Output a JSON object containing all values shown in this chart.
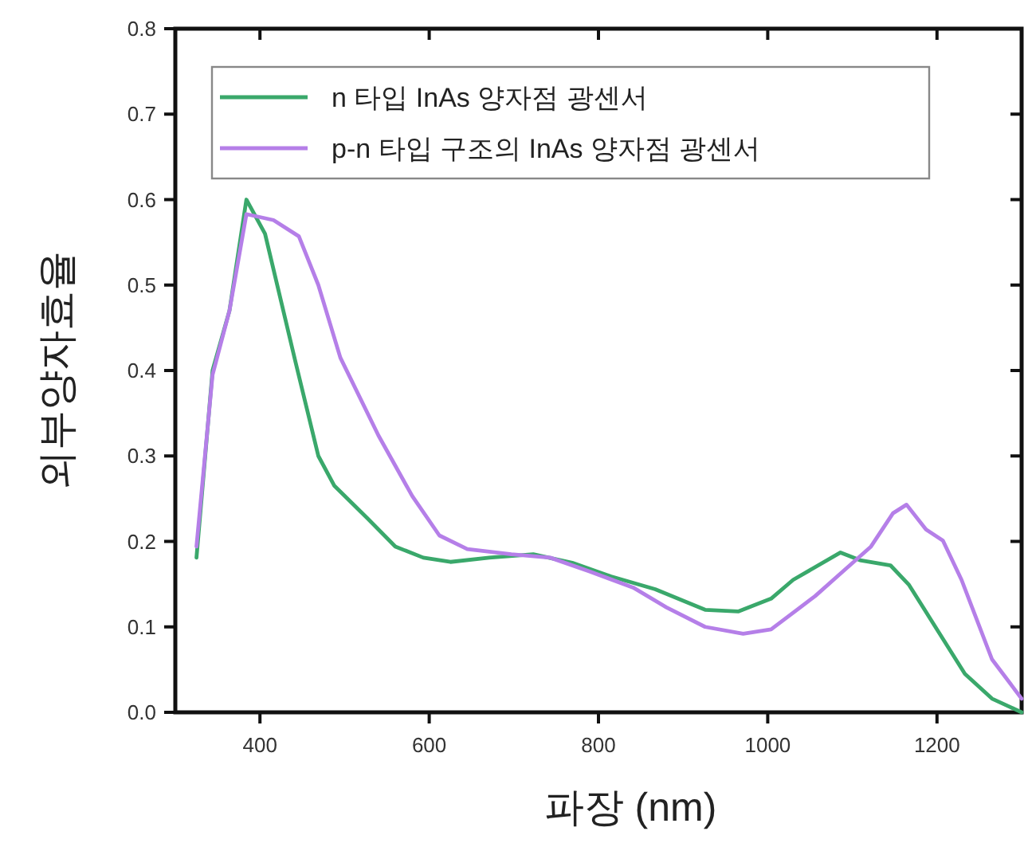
{
  "chart_data": {
    "type": "line",
    "xlabel": "파장 (nm)",
    "ylabel": "외부양자효율",
    "xlim": [
      300,
      1300
    ],
    "ylim": [
      0,
      0.8
    ],
    "xticks": [
      400,
      600,
      800,
      1000,
      1200
    ],
    "yticks": [
      {
        "value": 0,
        "label": "0.0"
      },
      {
        "value": 0.1,
        "label": "0.1"
      },
      {
        "value": 0.2,
        "label": "0.2"
      },
      {
        "value": 0.3,
        "label": "0.3"
      },
      {
        "value": 0.4,
        "label": "0.4"
      },
      {
        "value": 0.5,
        "label": "0.5"
      },
      {
        "value": 0.6,
        "label": "0.6"
      },
      {
        "value": 0.7,
        "label": "0.7"
      },
      {
        "value": 0.8,
        "label": "0.8"
      }
    ],
    "legend": "top left",
    "grid": false,
    "series": [
      {
        "name": "n 타입 InAs 양자점 광센서",
        "color": "#3aa86b",
        "x": [
          325,
          344,
          364,
          384,
          406,
          442,
          469,
          488,
          527,
          560,
          593,
          625,
          671,
          723,
          769,
          815,
          867,
          926,
          965,
          1004,
          1030,
          1086,
          1109,
          1145,
          1167,
          1200,
          1233,
          1265,
          1300
        ],
        "values": [
          0.181,
          0.4,
          0.47,
          0.6,
          0.56,
          0.41,
          0.3,
          0.265,
          0.227,
          0.194,
          0.181,
          0.176,
          0.181,
          0.185,
          0.175,
          0.159,
          0.144,
          0.12,
          0.118,
          0.133,
          0.155,
          0.187,
          0.178,
          0.172,
          0.149,
          0.097,
          0.045,
          0.016,
          0.0
        ]
      },
      {
        "name": "p-n 타입 구조의 InAs 양자점 광센서",
        "color": "#b57fe8",
        "x": [
          325,
          344,
          364,
          384,
          416,
          446,
          469,
          495,
          540,
          580,
          612,
          645,
          697,
          743,
          789,
          841,
          880,
          926,
          971,
          1004,
          1056,
          1089,
          1122,
          1148,
          1164,
          1187,
          1207,
          1229,
          1265,
          1300
        ],
        "values": [
          0.194,
          0.395,
          0.47,
          0.583,
          0.576,
          0.557,
          0.5,
          0.415,
          0.324,
          0.253,
          0.207,
          0.191,
          0.185,
          0.181,
          0.165,
          0.146,
          0.123,
          0.1,
          0.092,
          0.097,
          0.136,
          0.165,
          0.194,
          0.233,
          0.243,
          0.214,
          0.201,
          0.155,
          0.062,
          0.016
        ]
      }
    ]
  }
}
